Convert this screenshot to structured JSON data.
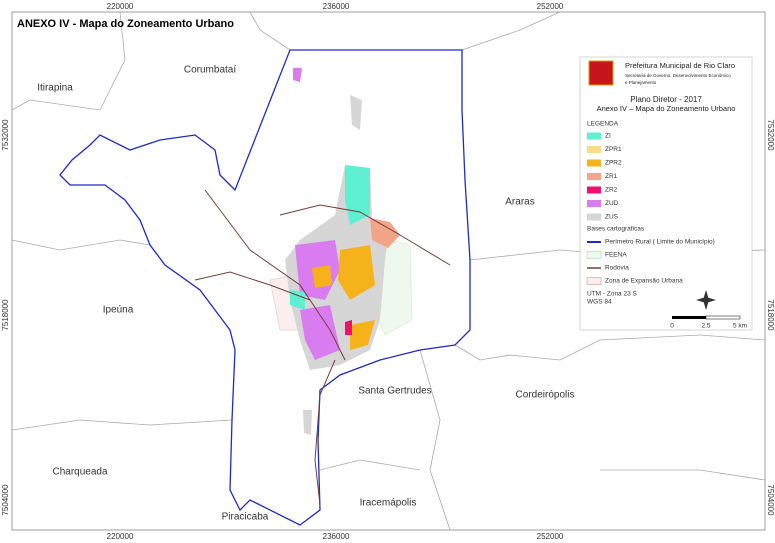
{
  "title": "ANEXO IV - Mapa do Zoneamento Urbano",
  "grid": {
    "top": [
      "220000",
      "236000",
      "252000"
    ],
    "bottom": [
      "220000",
      "236000",
      "252000"
    ],
    "left": [
      "7532000",
      "7518000",
      "7504000"
    ],
    "right": [
      "7532000",
      "7518000",
      "7504000"
    ]
  },
  "places": [
    "Corumbataí",
    "Itirapina",
    "Araras",
    "Ipeúna",
    "Santa Gertrudes",
    "Cordeirópolis",
    "Charqueada",
    "Iracemápolis",
    "Piracicaba"
  ],
  "legend": {
    "org": "Prefeitura Municipal de Rio Claro",
    "dept": [
      "Secretaria de Governo, Desenvolvimento Econômico",
      "e Planejamento"
    ],
    "plan": "Plano Diretor - 2017",
    "subtitle": "Anexo IV – Mapa do Zoneamento Urbano",
    "heading": "LEGENDA",
    "zones": [
      {
        "label": "ZI",
        "color": "#5ff0d2"
      },
      {
        "label": "ZPR1",
        "color": "#f8dc8a"
      },
      {
        "label": "ZPR2",
        "color": "#f5b21a"
      },
      {
        "label": "ZR1",
        "color": "#f3a58a"
      },
      {
        "label": "ZR2",
        "color": "#f0106e"
      },
      {
        "label": "ZUD",
        "color": "#d97cf0"
      },
      {
        "label": "ZUS",
        "color": "#d6d6d6"
      }
    ],
    "bases_heading": "Bases cartográficas",
    "bases": [
      "Perímetro Rural ( Limite do Município)",
      "FEENA",
      "Rodovia",
      "Zona de Expansão Urbana"
    ],
    "projection": [
      "UTM - Zona 23 S",
      "WGS 84"
    ],
    "scale": [
      "0",
      "2.5",
      "5 km"
    ]
  }
}
